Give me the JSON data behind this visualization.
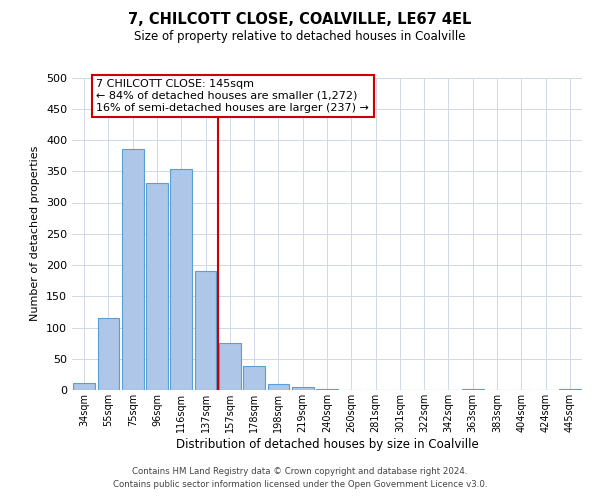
{
  "title": "7, CHILCOTT CLOSE, COALVILLE, LE67 4EL",
  "subtitle": "Size of property relative to detached houses in Coalville",
  "xlabel": "Distribution of detached houses by size in Coalville",
  "ylabel": "Number of detached properties",
  "bar_labels": [
    "34sqm",
    "55sqm",
    "75sqm",
    "96sqm",
    "116sqm",
    "137sqm",
    "157sqm",
    "178sqm",
    "198sqm",
    "219sqm",
    "240sqm",
    "260sqm",
    "281sqm",
    "301sqm",
    "322sqm",
    "342sqm",
    "363sqm",
    "383sqm",
    "404sqm",
    "424sqm",
    "445sqm"
  ],
  "bar_values": [
    12,
    115,
    385,
    332,
    353,
    190,
    76,
    38,
    10,
    5,
    1,
    0,
    0,
    0,
    0,
    0,
    1,
    0,
    0,
    0,
    1
  ],
  "bar_color": "#aec6e8",
  "bar_edge_color": "#5a9fd4",
  "property_line_color": "#cc0000",
  "annotation_line1": "7 CHILCOTT CLOSE: 145sqm",
  "annotation_line2": "← 84% of detached houses are smaller (1,272)",
  "annotation_line3": "16% of semi-detached houses are larger (237) →",
  "annotation_box_color": "#ffffff",
  "annotation_box_edge_color": "#cc0000",
  "ylim": [
    0,
    500
  ],
  "yticks": [
    0,
    50,
    100,
    150,
    200,
    250,
    300,
    350,
    400,
    450,
    500
  ],
  "footer_line1": "Contains HM Land Registry data © Crown copyright and database right 2024.",
  "footer_line2": "Contains public sector information licensed under the Open Government Licence v3.0.",
  "background_color": "#ffffff",
  "grid_color": "#d0d8e8"
}
